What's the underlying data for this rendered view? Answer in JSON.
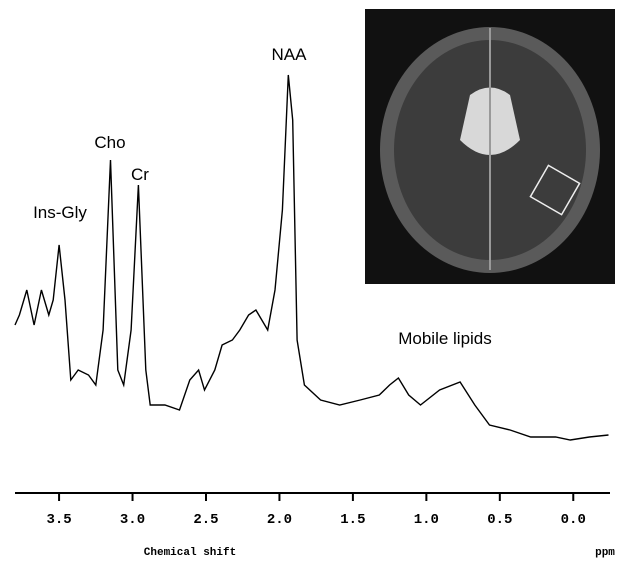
{
  "chart_data": {
    "type": "line",
    "x": [
      3.8,
      3.77,
      3.72,
      3.67,
      3.62,
      3.57,
      3.54,
      3.5,
      3.46,
      3.42,
      3.37,
      3.3,
      3.25,
      3.2,
      3.15,
      3.1,
      3.06,
      3.01,
      2.96,
      2.91,
      2.88,
      2.78,
      2.68,
      2.61,
      2.55,
      2.51,
      2.44,
      2.39,
      2.32,
      2.27,
      2.21,
      2.16,
      2.12,
      2.08,
      2.03,
      1.98,
      1.94,
      1.91,
      1.88,
      1.83,
      1.72,
      1.59,
      1.45,
      1.32,
      1.25,
      1.19,
      1.12,
      1.04,
      0.91,
      0.77,
      0.67,
      0.57,
      0.43,
      0.29,
      0.12,
      0.02,
      -0.11,
      -0.24
    ],
    "values": [
      155,
      165,
      190,
      155,
      190,
      165,
      180,
      235,
      180,
      100,
      110,
      105,
      95,
      150,
      320,
      110,
      95,
      150,
      295,
      110,
      75,
      75,
      70,
      100,
      110,
      90,
      110,
      135,
      140,
      150,
      165,
      170,
      160,
      150,
      190,
      270,
      405,
      360,
      140,
      95,
      80,
      75,
      80,
      85,
      95,
      102,
      85,
      75,
      90,
      98,
      75,
      55,
      50,
      43,
      43,
      40,
      43,
      45
    ],
    "color": "#000000",
    "annotations": [
      "Ins-Gly",
      "Cho",
      "Cr",
      "NAA",
      "Mobile lipids"
    ],
    "xlabel": "Chemical shift",
    "xunit": "ppm",
    "xlim": [
      3.8,
      -0.25
    ],
    "ylim": [
      0,
      420
    ],
    "xticks": [
      3.5,
      {
        "value": 3,
        "label": "3.0"
      },
      2.5,
      {
        "value": 2,
        "label": "2.0"
      },
      1.5,
      {
        "value": 1,
        "label": "1.0"
      },
      0.5,
      {
        "value": 0,
        "label": "0.0"
      }
    ]
  }
}
